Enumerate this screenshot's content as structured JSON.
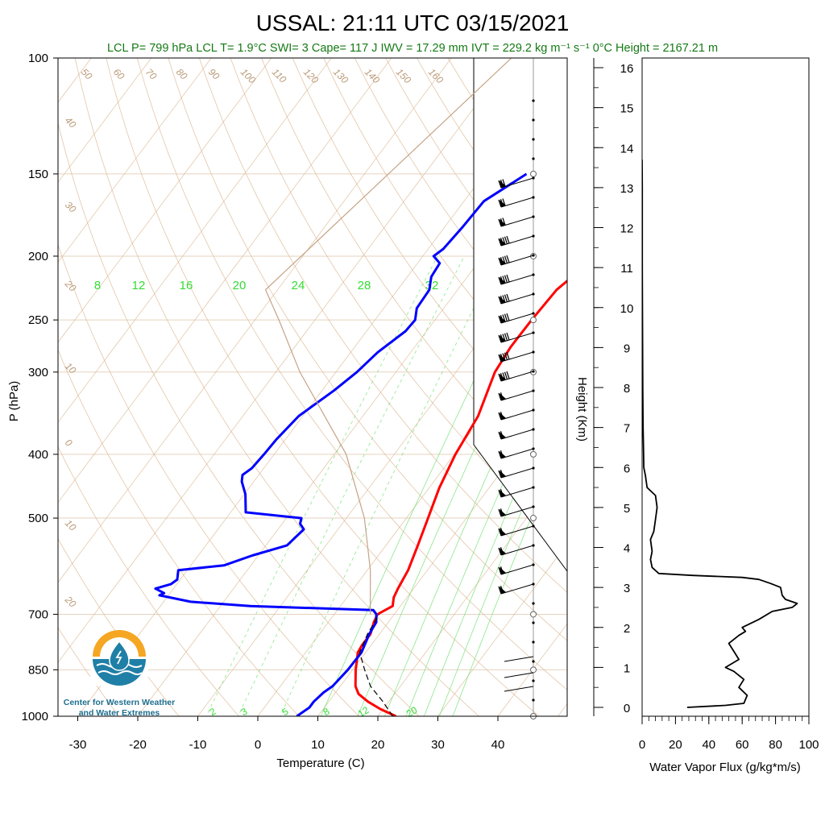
{
  "chart_data": [
    {
      "type": "line",
      "title": "USSAL: 21:11 UTC 03/15/2021",
      "subtitle": "LCL P= 799 hPa  LCL T= 1.9°C  SWI= 3  Cape= 117 J  IWV = 17.29 mm  IVT = 229.2 kg m⁻¹ s⁻¹  0°C Height = 2167.21 m",
      "xlabel": "Temperature (C)",
      "ylabel": "P (hPa)",
      "y_log": true,
      "ylim": [
        1000,
        100
      ],
      "x_ticks": [
        -30,
        -20,
        -10,
        0,
        10,
        20,
        30,
        40
      ],
      "y_ticks": [
        100,
        150,
        200,
        250,
        300,
        400,
        500,
        700,
        850,
        1000
      ],
      "series": [
        {
          "name": "Temperature",
          "color": "#ff0000",
          "p": [
            1000,
            975,
            950,
            925,
            900,
            850,
            800,
            780,
            750,
            720,
            700,
            680,
            660,
            640,
            620,
            600,
            550,
            500,
            450,
            400,
            350,
            300,
            275,
            250,
            225,
            200,
            180,
            165,
            150
          ],
          "t": [
            23,
            19.5,
            16.5,
            14,
            12.5,
            10.5,
            8.7,
            8.5,
            8.5,
            7.6,
            7.2,
            8.7,
            7.8,
            7.4,
            7.1,
            6.8,
            5.3,
            3.6,
            1.7,
            0.2,
            -0.8,
            -3.5,
            -4,
            -3.9,
            -3.5,
            -1,
            2,
            5.3,
            9.2
          ]
        },
        {
          "name": "Dewpoint",
          "color": "#0000ff",
          "p": [
            1000,
            970,
            950,
            920,
            900,
            850,
            800,
            750,
            720,
            700,
            690,
            680,
            670,
            655,
            650,
            640,
            630,
            620,
            600,
            590,
            570,
            550,
            520,
            510,
            500,
            490,
            460,
            440,
            430,
            420,
            400,
            380,
            350,
            320,
            300,
            280,
            260,
            250,
            240,
            225,
            215,
            205,
            200,
            195,
            180,
            165,
            150
          ],
          "t": [
            6.5,
            7.5,
            7.5,
            8,
            8.7,
            9.2,
            9.3,
            8.3,
            8,
            7,
            6,
            -15,
            -25.5,
            -31.5,
            -31,
            -33,
            -31,
            -30.5,
            -31.5,
            -24.5,
            -21,
            -16.5,
            -15.7,
            -17,
            -17.5,
            -27.5,
            -29.8,
            -32,
            -32.7,
            -32,
            -31.7,
            -31.5,
            -30.7,
            -28,
            -26.5,
            -25.5,
            -23.5,
            -23.3,
            -24.5,
            -24.7,
            -26,
            -26.3,
            -28.2,
            -27.5,
            -27,
            -26.7,
            -23
          ]
        },
        {
          "name": "Parcel",
          "style": "dashed",
          "p": [
            1000,
            950,
            900,
            850,
            800,
            750,
            700
          ],
          "t": [
            22.5,
            19,
            15,
            12,
            9,
            8,
            7.5
          ]
        }
      ],
      "mixing_ratio_labels": [
        "8",
        "12",
        "16",
        "20",
        "24",
        "28",
        "32"
      ],
      "mixing_ratio_bottom_labels": [
        "2",
        "3",
        "5",
        "8",
        "12",
        "20"
      ],
      "dry_adiabat_labels": [
        "50",
        "60",
        "70",
        "80",
        "90",
        "100",
        "110",
        "120",
        "130",
        "140",
        "150",
        "160",
        "40",
        "30",
        "20",
        "10",
        "0",
        "10",
        "20"
      ],
      "isotherm_labels": [
        "30",
        "20",
        "10",
        "0",
        "10",
        "20",
        "30"
      ],
      "wind_barb_pressures": [
        150,
        200,
        250,
        300,
        400,
        500,
        700,
        850,
        1000
      ]
    },
    {
      "type": "line",
      "xlabel": "Water Vapor Flux (g/kg*m/s)",
      "ylabel": "Height (Km)",
      "xlim": [
        0,
        100
      ],
      "ylim": [
        0,
        16
      ],
      "x_ticks": [
        0,
        20,
        40,
        60,
        80,
        100
      ],
      "y_ticks": [
        0,
        1,
        2,
        3,
        4,
        5,
        6,
        7,
        8,
        9,
        10,
        11,
        12,
        13,
        14,
        15,
        16
      ],
      "series": [
        {
          "name": "Water Vapor Flux",
          "color": "#000000",
          "h": [
            0,
            0.05,
            0.1,
            0.3,
            0.5,
            0.7,
            0.9,
            1.0,
            1.2,
            1.4,
            1.6,
            1.8,
            1.9,
            2.0,
            2.2,
            2.4,
            2.5,
            2.6,
            2.7,
            2.8,
            3.0,
            3.1,
            3.2,
            3.25,
            3.3,
            3.35,
            3.5,
            3.7,
            3.9,
            4.2,
            4.4,
            4.7,
            5.0,
            5.3,
            5.5,
            5.8,
            6.0,
            6.5,
            7,
            8,
            9,
            10,
            11,
            12,
            13,
            13.7
          ],
          "v": [
            27,
            50,
            61,
            63,
            58,
            61,
            55,
            50,
            58,
            55,
            52,
            58,
            62,
            60,
            70,
            78,
            90,
            93,
            86,
            84,
            83,
            77,
            70,
            60,
            30,
            10,
            6,
            5,
            6,
            5,
            7,
            8,
            9,
            8,
            3,
            2,
            1,
            0.8,
            0.6,
            0.4,
            0.3,
            0.2,
            0.1,
            0.1,
            0.1,
            0
          ]
        }
      ]
    }
  ],
  "logo": {
    "line1": "Center for Western Weather",
    "line2": "and Water Extremes"
  },
  "colors": {
    "temperature": "#ff0000",
    "dewpoint": "#0000ff",
    "dry_adiabat": "#d9b38c",
    "mixing_ratio": "#33dd33",
    "info_text": "#157a15"
  }
}
